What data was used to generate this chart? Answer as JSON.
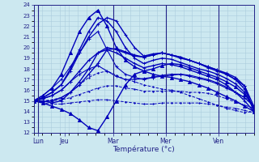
{
  "xlabel": "Température (°c)",
  "xlim": [
    0,
    100
  ],
  "ylim": [
    12,
    24
  ],
  "yticks": [
    12,
    13,
    14,
    15,
    16,
    17,
    18,
    19,
    20,
    21,
    22,
    23,
    24
  ],
  "xtick_positions": [
    2,
    14,
    36,
    60,
    84
  ],
  "xtick_labels": [
    "Lun",
    "Jeu",
    "Mar",
    "Mer",
    "Ven"
  ],
  "vlines": [
    2,
    36,
    60,
    84
  ],
  "bg_color": "#cce8f0",
  "grid_color": "#aaccdd",
  "line_color": "#0000bb",
  "series": [
    [
      15.0,
      15.0,
      15.1,
      15.3,
      15.8,
      16.5,
      17.2,
      17.6,
      17.8,
      17.4,
      17.0,
      16.8,
      16.5,
      16.3,
      16.1,
      16.0,
      15.8,
      15.5,
      15.2,
      14.9,
      14.6,
      14.3,
      14.1,
      13.9,
      14.0
    ],
    [
      15.0,
      15.2,
      15.5,
      16.0,
      16.8,
      17.5,
      18.0,
      18.3,
      17.8,
      17.3,
      17.0,
      17.0,
      17.1,
      17.2,
      17.3,
      17.4,
      17.5,
      17.4,
      17.2,
      17.0,
      16.7,
      16.3,
      15.8,
      15.3,
      14.5
    ],
    [
      15.0,
      15.5,
      16.2,
      17.0,
      18.2,
      19.5,
      20.8,
      21.5,
      19.8,
      18.2,
      17.5,
      17.2,
      17.0,
      17.2,
      17.4,
      17.5,
      17.5,
      17.3,
      17.1,
      16.9,
      16.6,
      16.2,
      15.8,
      15.3,
      14.5
    ],
    [
      15.0,
      15.5,
      16.2,
      17.5,
      19.5,
      21.5,
      22.8,
      23.5,
      22.0,
      20.0,
      18.8,
      18.2,
      17.8,
      18.0,
      18.3,
      18.5,
      18.4,
      18.1,
      17.8,
      17.5,
      17.2,
      16.8,
      16.3,
      15.6,
      14.5
    ],
    [
      15.0,
      15.3,
      15.8,
      16.5,
      18.0,
      19.8,
      21.5,
      22.8,
      22.5,
      21.5,
      20.0,
      19.0,
      18.5,
      18.8,
      19.0,
      18.9,
      18.6,
      18.3,
      18.0,
      17.8,
      17.5,
      17.1,
      16.6,
      15.8,
      14.2
    ],
    [
      15.0,
      15.3,
      15.8,
      16.5,
      17.8,
      19.5,
      21.0,
      22.2,
      22.8,
      22.5,
      21.2,
      20.0,
      19.2,
      19.4,
      19.5,
      19.3,
      19.0,
      18.8,
      18.5,
      18.2,
      17.9,
      17.5,
      17.0,
      16.1,
      14.2
    ],
    [
      15.0,
      15.2,
      15.5,
      16.0,
      16.8,
      17.8,
      18.8,
      19.5,
      20.0,
      19.8,
      19.5,
      19.2,
      19.1,
      19.3,
      19.5,
      19.3,
      19.1,
      18.8,
      18.5,
      18.2,
      17.9,
      17.6,
      17.2,
      16.4,
      14.0
    ],
    [
      15.0,
      15.0,
      15.0,
      15.1,
      15.3,
      15.6,
      15.9,
      16.2,
      16.4,
      16.4,
      16.2,
      16.1,
      15.9,
      15.9,
      15.9,
      15.9,
      15.9,
      15.8,
      15.8,
      15.7,
      15.5,
      15.2,
      14.9,
      14.6,
      14.3
    ],
    [
      15.0,
      14.8,
      14.7,
      14.7,
      14.8,
      14.9,
      15.0,
      15.1,
      15.1,
      15.0,
      14.9,
      14.8,
      14.7,
      14.7,
      14.8,
      14.8,
      14.8,
      14.8,
      14.8,
      14.7,
      14.6,
      14.4,
      14.3,
      14.1,
      13.9
    ],
    [
      15.0,
      14.8,
      14.5,
      14.2,
      13.8,
      13.2,
      12.5,
      12.2,
      13.5,
      15.0,
      16.5,
      17.5,
      17.8,
      17.5,
      17.3,
      17.2,
      17.0,
      16.8,
      16.5,
      16.2,
      15.8,
      15.4,
      15.0,
      14.5,
      14.0
    ],
    [
      15.0,
      15.0,
      14.8,
      15.0,
      15.8,
      16.8,
      18.0,
      19.5,
      19.8,
      19.5,
      19.0,
      18.5,
      18.1,
      18.3,
      18.5,
      18.4,
      18.2,
      17.9,
      17.6,
      17.3,
      17.0,
      16.5,
      15.8,
      15.0,
      14.0
    ],
    [
      15.0,
      14.9,
      15.0,
      15.3,
      15.8,
      16.5,
      17.5,
      18.5,
      19.8,
      19.9,
      19.6,
      19.3,
      19.1,
      19.3,
      19.5,
      19.3,
      19.1,
      18.8,
      18.5,
      18.1,
      17.8,
      17.5,
      17.0,
      16.4,
      14.5
    ]
  ],
  "series_styles": [
    {
      "lw": 0.7,
      "ls": "--",
      "marker": ".",
      "ms": 2
    },
    {
      "lw": 0.8,
      "ls": "-",
      "marker": "+",
      "ms": 3
    },
    {
      "lw": 0.8,
      "ls": "-",
      "marker": "+",
      "ms": 3
    },
    {
      "lw": 1.0,
      "ls": "-",
      "marker": "^",
      "ms": 3
    },
    {
      "lw": 1.0,
      "ls": "-",
      "marker": "+",
      "ms": 3
    },
    {
      "lw": 1.0,
      "ls": "-",
      "marker": "+",
      "ms": 3
    },
    {
      "lw": 1.0,
      "ls": "-",
      "marker": "+",
      "ms": 3
    },
    {
      "lw": 0.7,
      "ls": "--",
      "marker": ".",
      "ms": 2
    },
    {
      "lw": 0.7,
      "ls": "--",
      "marker": ".",
      "ms": 2
    },
    {
      "lw": 1.0,
      "ls": "-",
      "marker": "^",
      "ms": 3
    },
    {
      "lw": 1.0,
      "ls": "-",
      "marker": "+",
      "ms": 3
    },
    {
      "lw": 1.0,
      "ls": "-",
      "marker": "+",
      "ms": 3
    }
  ]
}
